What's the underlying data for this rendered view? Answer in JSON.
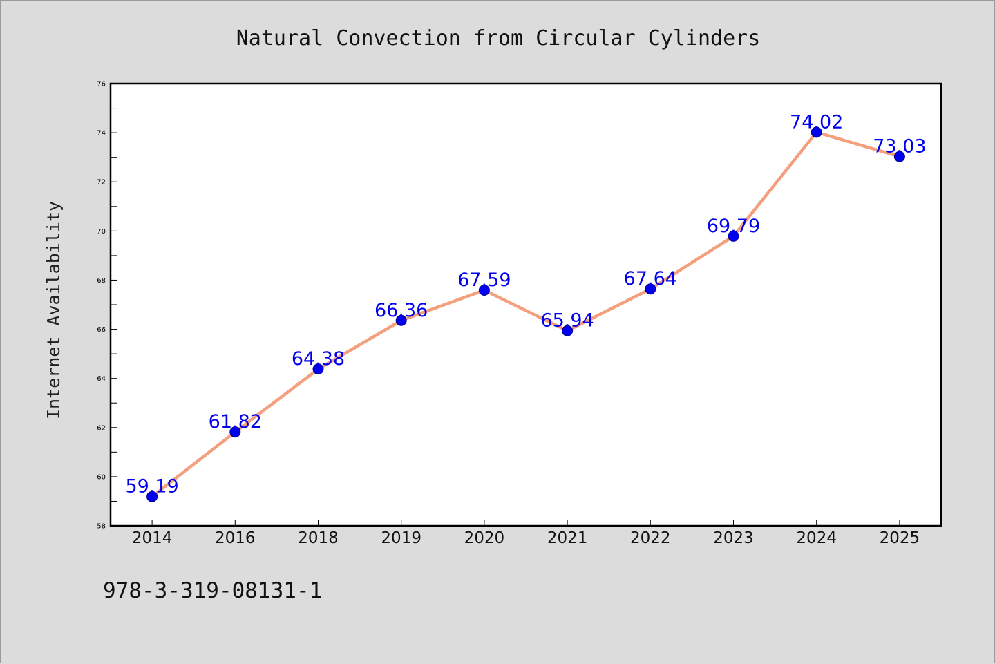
{
  "footer_text": "978-3-319-08131-1",
  "chart_data": {
    "type": "line",
    "title": "Natural Convection from Circular Cylinders",
    "xlabel": "",
    "ylabel": "Internet Availability",
    "categories": [
      "2014",
      "2016",
      "2018",
      "2019",
      "2020",
      "2021",
      "2022",
      "2023",
      "2024",
      "2025"
    ],
    "series": [
      {
        "values": [
          59.19,
          61.82,
          64.38,
          66.36,
          67.59,
          65.94,
          67.64,
          69.79,
          74.02,
          73.03
        ],
        "labels": [
          "59.19",
          "61.82",
          "64.38",
          "66.36",
          "67.59",
          "65.94",
          "67.64",
          "69.79",
          "74.02",
          "73.03"
        ],
        "line_color": "#f4a07e",
        "marker_color": "#0000ee",
        "label_color": "#0000ee"
      }
    ],
    "ylim": [
      58,
      76
    ],
    "yticks": [
      "58",
      "60",
      "62",
      "64",
      "66",
      "68",
      "70",
      "72",
      "74",
      "76"
    ],
    "grid": false,
    "legend": "none",
    "plot_background": "#ffffff",
    "figure_background": "#dcdcdc"
  }
}
